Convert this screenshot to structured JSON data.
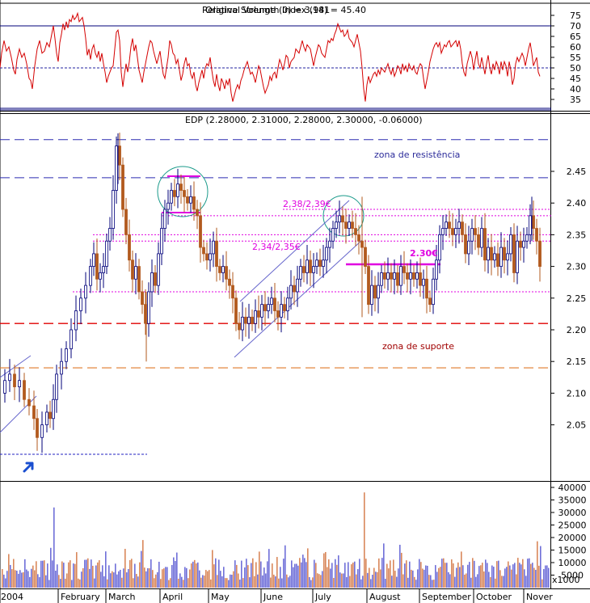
{
  "chart_data": [
    {
      "type": "line",
      "panel": "rsi",
      "title": "Relative Strength Index (14) = 45.40",
      "overlay_title": "Original Volume (0) = 3,981",
      "ylim": [
        30,
        80
      ],
      "yticks": [
        35,
        40,
        45,
        50,
        55,
        60,
        65,
        70,
        75
      ],
      "reference_lines": [
        70,
        50,
        30
      ],
      "colors": {
        "line": "#d40000",
        "ref70": "#00007a",
        "ref50": "#2020a0",
        "ref30": "#00007a"
      },
      "points": [
        [
          0,
          50
        ],
        [
          2,
          57
        ],
        [
          5,
          63
        ],
        [
          8,
          58
        ],
        [
          11,
          60
        ],
        [
          14,
          55
        ],
        [
          17,
          49
        ],
        [
          19,
          47
        ],
        [
          21,
          54
        ],
        [
          24,
          59
        ],
        [
          27,
          55
        ],
        [
          30,
          57
        ],
        [
          33,
          52
        ],
        [
          36,
          45
        ],
        [
          38,
          44
        ],
        [
          40,
          40
        ],
        [
          43,
          51
        ],
        [
          46,
          59
        ],
        [
          49,
          63
        ],
        [
          52,
          57
        ],
        [
          55,
          58
        ],
        [
          58,
          62
        ],
        [
          61,
          60
        ],
        [
          64,
          66
        ],
        [
          66,
          70
        ],
        [
          68,
          64
        ],
        [
          70,
          57
        ],
        [
          72,
          53
        ],
        [
          74,
          62
        ],
        [
          76,
          66
        ],
        [
          78,
          71
        ],
        [
          80,
          68
        ],
        [
          82,
          72
        ],
        [
          84,
          69
        ],
        [
          86,
          73
        ],
        [
          88,
          72
        ],
        [
          90,
          75
        ],
        [
          92,
          73
        ],
        [
          94,
          74
        ],
        [
          96,
          76
        ],
        [
          98,
          72
        ],
        [
          100,
          73
        ],
        [
          102,
          74
        ],
        [
          104,
          70
        ],
        [
          106,
          64
        ],
        [
          108,
          56
        ],
        [
          110,
          59
        ],
        [
          112,
          54
        ],
        [
          114,
          59
        ],
        [
          116,
          61
        ],
        [
          118,
          57
        ],
        [
          120,
          55
        ],
        [
          122,
          58
        ],
        [
          124,
          53
        ],
        [
          126,
          57
        ],
        [
          128,
          52
        ],
        [
          130,
          48
        ],
        [
          132,
          43
        ],
        [
          134,
          46
        ],
        [
          136,
          48
        ],
        [
          138,
          50
        ],
        [
          140,
          51
        ],
        [
          142,
          59
        ],
        [
          144,
          67
        ],
        [
          146,
          68
        ],
        [
          148,
          63
        ],
        [
          150,
          48
        ],
        [
          152,
          41
        ],
        [
          154,
          47
        ],
        [
          156,
          52
        ],
        [
          158,
          48
        ],
        [
          160,
          53
        ],
        [
          162,
          60
        ],
        [
          164,
          64
        ],
        [
          166,
          58
        ],
        [
          168,
          61
        ],
        [
          170,
          55
        ],
        [
          172,
          49
        ],
        [
          174,
          46
        ],
        [
          176,
          43
        ],
        [
          178,
          48
        ],
        [
          180,
          52
        ],
        [
          182,
          56
        ],
        [
          184,
          60
        ],
        [
          186,
          63
        ],
        [
          188,
          62
        ],
        [
          190,
          58
        ],
        [
          192,
          55
        ],
        [
          194,
          52
        ],
        [
          196,
          55
        ],
        [
          198,
          58
        ],
        [
          200,
          52
        ],
        [
          202,
          47
        ],
        [
          204,
          45
        ],
        [
          206,
          50
        ],
        [
          208,
          55
        ],
        [
          210,
          63
        ],
        [
          212,
          61
        ],
        [
          214,
          57
        ],
        [
          216,
          56
        ],
        [
          218,
          52
        ],
        [
          220,
          54
        ],
        [
          222,
          49
        ],
        [
          224,
          44
        ],
        [
          226,
          47
        ],
        [
          228,
          52
        ],
        [
          230,
          55
        ],
        [
          232,
          51
        ],
        [
          234,
          52
        ],
        [
          236,
          47
        ],
        [
          238,
          45
        ],
        [
          240,
          48
        ],
        [
          242,
          42
        ],
        [
          244,
          39
        ],
        [
          246,
          43
        ],
        [
          248,
          46
        ],
        [
          250,
          49
        ],
        [
          252,
          45
        ],
        [
          254,
          50
        ],
        [
          256,
          52
        ],
        [
          258,
          51
        ],
        [
          260,
          55
        ],
        [
          262,
          49
        ],
        [
          264,
          44
        ],
        [
          266,
          41
        ],
        [
          268,
          47
        ],
        [
          270,
          42
        ],
        [
          272,
          39
        ],
        [
          274,
          45
        ],
        [
          276,
          43
        ],
        [
          278,
          40
        ],
        [
          280,
          44
        ],
        [
          282,
          42
        ],
        [
          284,
          45
        ],
        [
          286,
          38
        ],
        [
          288,
          34
        ],
        [
          290,
          37
        ],
        [
          292,
          40
        ],
        [
          294,
          42
        ],
        [
          296,
          40
        ],
        [
          298,
          44
        ],
        [
          300,
          46
        ],
        [
          302,
          49
        ],
        [
          304,
          51
        ],
        [
          306,
          53
        ],
        [
          308,
          50
        ],
        [
          310,
          47
        ],
        [
          312,
          48
        ],
        [
          314,
          46
        ],
        [
          316,
          43
        ],
        [
          318,
          47
        ],
        [
          320,
          51
        ],
        [
          322,
          49
        ],
        [
          324,
          45
        ],
        [
          326,
          41
        ],
        [
          328,
          38
        ],
        [
          330,
          40
        ],
        [
          332,
          42
        ],
        [
          334,
          46
        ],
        [
          336,
          44
        ],
        [
          338,
          47
        ],
        [
          340,
          48
        ],
        [
          342,
          45
        ],
        [
          344,
          50
        ],
        [
          346,
          54
        ],
        [
          348,
          52
        ],
        [
          350,
          49
        ],
        [
          352,
          52
        ],
        [
          354,
          56
        ],
        [
          356,
          55
        ],
        [
          358,
          50
        ],
        [
          360,
          53
        ],
        [
          362,
          54
        ],
        [
          364,
          55
        ],
        [
          366,
          59
        ],
        [
          368,
          58
        ],
        [
          370,
          57
        ],
        [
          372,
          60
        ],
        [
          374,
          63
        ],
        [
          376,
          60
        ],
        [
          378,
          58
        ],
        [
          380,
          61
        ],
        [
          382,
          60
        ],
        [
          384,
          59
        ],
        [
          386,
          55
        ],
        [
          388,
          51
        ],
        [
          390,
          55
        ],
        [
          392,
          58
        ],
        [
          394,
          61
        ],
        [
          396,
          60
        ],
        [
          398,
          57
        ],
        [
          400,
          56
        ],
        [
          402,
          55
        ],
        [
          404,
          59
        ],
        [
          406,
          63
        ],
        [
          408,
          62
        ],
        [
          410,
          64
        ],
        [
          412,
          63
        ],
        [
          414,
          66
        ],
        [
          416,
          68
        ],
        [
          418,
          71
        ],
        [
          420,
          69
        ],
        [
          422,
          67
        ],
        [
          424,
          68
        ],
        [
          426,
          65
        ],
        [
          428,
          66
        ],
        [
          430,
          68
        ],
        [
          432,
          64
        ],
        [
          434,
          63
        ],
        [
          436,
          62
        ],
        [
          438,
          60
        ],
        [
          440,
          63
        ],
        [
          442,
          66
        ],
        [
          444,
          62
        ],
        [
          446,
          58
        ],
        [
          448,
          50
        ],
        [
          450,
          40
        ],
        [
          452,
          34
        ],
        [
          454,
          42
        ],
        [
          456,
          46
        ],
        [
          458,
          43
        ],
        [
          460,
          45
        ],
        [
          462,
          47
        ],
        [
          464,
          48
        ],
        [
          466,
          46
        ],
        [
          468,
          49
        ],
        [
          470,
          47
        ],
        [
          472,
          50
        ],
        [
          474,
          49
        ],
        [
          476,
          48
        ],
        [
          478,
          50
        ],
        [
          480,
          52
        ],
        [
          482,
          49
        ],
        [
          484,
          47
        ],
        [
          486,
          50
        ],
        [
          488,
          46
        ],
        [
          490,
          48
        ],
        [
          492,
          51
        ],
        [
          494,
          50
        ],
        [
          496,
          47
        ],
        [
          498,
          52
        ],
        [
          500,
          49
        ],
        [
          502,
          51
        ],
        [
          504,
          48
        ],
        [
          506,
          52
        ],
        [
          508,
          50
        ],
        [
          510,
          49
        ],
        [
          512,
          51
        ],
        [
          514,
          48
        ],
        [
          516,
          47
        ],
        [
          518,
          50
        ],
        [
          520,
          52
        ],
        [
          522,
          51
        ],
        [
          524,
          45
        ],
        [
          526,
          40
        ],
        [
          528,
          44
        ],
        [
          530,
          48
        ],
        [
          532,
          53
        ],
        [
          534,
          56
        ],
        [
          536,
          59
        ],
        [
          538,
          61
        ],
        [
          540,
          62
        ],
        [
          542,
          60
        ],
        [
          544,
          62
        ],
        [
          546,
          57
        ],
        [
          548,
          59
        ],
        [
          550,
          61
        ],
        [
          552,
          60
        ],
        [
          554,
          62
        ],
        [
          556,
          63
        ],
        [
          558,
          60
        ],
        [
          560,
          61
        ],
        [
          562,
          62
        ],
        [
          564,
          63
        ],
        [
          566,
          60
        ],
        [
          568,
          63
        ],
        [
          570,
          59
        ],
        [
          572,
          52
        ],
        [
          574,
          48
        ],
        [
          576,
          46
        ],
        [
          578,
          52
        ],
        [
          580,
          55
        ],
        [
          582,
          58
        ],
        [
          584,
          55
        ],
        [
          586,
          49
        ],
        [
          588,
          54
        ],
        [
          590,
          58
        ],
        [
          592,
          52
        ],
        [
          594,
          50
        ],
        [
          596,
          55
        ],
        [
          598,
          51
        ],
        [
          600,
          47
        ],
        [
          602,
          52
        ],
        [
          604,
          56
        ],
        [
          606,
          50
        ],
        [
          608,
          47
        ],
        [
          610,
          52
        ],
        [
          612,
          49
        ],
        [
          614,
          53
        ],
        [
          616,
          51
        ],
        [
          618,
          47
        ],
        [
          620,
          53
        ],
        [
          622,
          49
        ],
        [
          624,
          53
        ],
        [
          626,
          51
        ],
        [
          628,
          46
        ],
        [
          630,
          53
        ],
        [
          632,
          49
        ],
        [
          634,
          42
        ],
        [
          636,
          45
        ],
        [
          638,
          52
        ],
        [
          640,
          55
        ],
        [
          642,
          53
        ],
        [
          644,
          55
        ],
        [
          646,
          57
        ],
        [
          648,
          55
        ],
        [
          650,
          51
        ],
        [
          652,
          55
        ],
        [
          654,
          59
        ],
        [
          656,
          62
        ],
        [
          658,
          57
        ],
        [
          660,
          51
        ],
        [
          662,
          53
        ],
        [
          664,
          55
        ],
        [
          666,
          48
        ],
        [
          668,
          46
        ]
      ]
    },
    {
      "type": "candlestick",
      "panel": "price",
      "title": "EDP (2.28000, 2.31000, 2.28000, 2.30000, -0.06000)",
      "ylim": [
        2.0,
        2.54
      ],
      "yticks": [
        2.05,
        2.1,
        2.15,
        2.2,
        2.25,
        2.3,
        2.35,
        2.4,
        2.45
      ],
      "x_labels": [
        "2004",
        "February",
        "March",
        "April",
        "May",
        "June",
        "July",
        "August",
        "September",
        "October",
        "Nover"
      ],
      "colors": {
        "up": "#00007a",
        "down": "#b25a1e",
        "resistance_lines": "#2b2bb0",
        "support_line": "#e00000",
        "lower_support": "#e07a2a",
        "magenta": "#e000e0",
        "channel": "#6666cc",
        "circle": "#1a9a8a",
        "arrow": "#1a4fd0"
      },
      "resistance_levels": [
        2.5,
        2.44
      ],
      "support_levels": [
        2.21,
        2.14
      ],
      "dotted_levels": [
        2.39,
        2.38,
        2.35,
        2.34,
        2.26
      ],
      "low_marker_level": 2.025,
      "annotations": {
        "resistance_zone": "zona de resistência",
        "support_zone": "zona de suporte",
        "label_238": "2,38/2,39€",
        "label_234": "2,34/2,35€",
        "label_230": "2.30€"
      },
      "last_close": 2.3
    },
    {
      "type": "bar",
      "panel": "volume",
      "ylim": [
        0,
        42000
      ],
      "yticks": [
        5000,
        10000,
        15000,
        20000,
        25000,
        30000,
        35000,
        40000
      ],
      "unit_label": "x1000",
      "colors": {
        "up": "#6f6fd8",
        "down": "#d9875a"
      }
    }
  ]
}
